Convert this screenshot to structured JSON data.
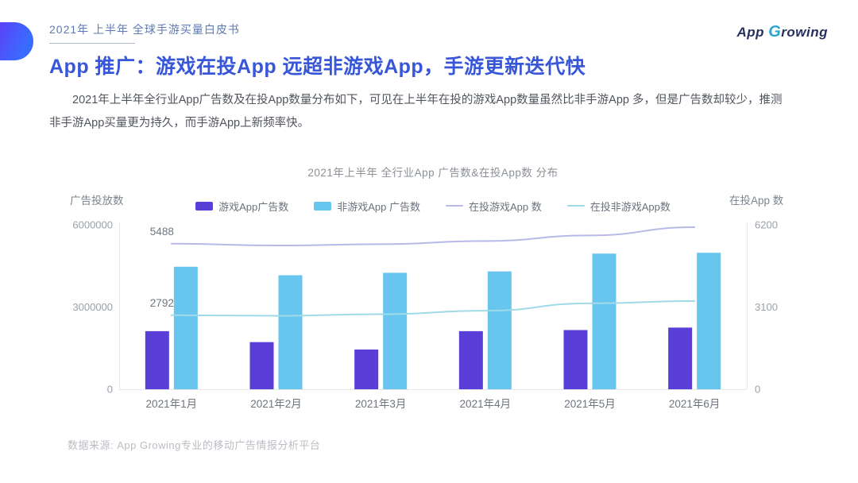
{
  "page": {
    "header_label": "2021年 上半年 全球手游买量白皮书",
    "logo": {
      "app": "App ",
      "g": "G",
      "rest": "rowing"
    },
    "title": "App 推广：游戏在投App 远超非游戏App，手游更新迭代快",
    "body": "2021年上半年全行业App广告数及在投App数量分布如下，可见在上半年在投的游戏App数量虽然比非手游App 多，但是广告数却较少，推测非手游App买量更为持久，而手游App上新频率快。",
    "footer": "数据来源: App Growing专业的移动广告情报分析平台"
  },
  "chart_data": {
    "type": "bar+line combo",
    "title": "2021年上半年 全行业App 广告数&在投App数 分布",
    "categories": [
      "2021年1月",
      "2021年2月",
      "2021年3月",
      "2021年4月",
      "2021年5月",
      "2021年6月"
    ],
    "left_axis": {
      "label": "广告投放数",
      "max": 6000000,
      "ticks": [
        "6000000",
        "3000000",
        "0"
      ],
      "ylim": [
        0,
        6000000
      ]
    },
    "right_axis": {
      "label": "在投App 数",
      "max": 6200,
      "ticks": [
        "6200",
        "3100",
        "0"
      ],
      "ylim": [
        0,
        6200
      ]
    },
    "bar_series": [
      {
        "key": "game-app-ads",
        "name": "游戏App广告数",
        "color": "#5a3ed8",
        "axis": "left",
        "values": [
          2120000,
          1720000,
          1450000,
          2120000,
          2160000,
          2250000
        ]
      },
      {
        "key": "nongame-app-ads",
        "name": "非游戏App 广告数",
        "color": "#68c5ee",
        "axis": "left",
        "values": [
          4470000,
          4160000,
          4250000,
          4300000,
          4950000,
          4980000
        ]
      }
    ],
    "line_series": [
      {
        "key": "active-game-apps",
        "name": "在投游戏App 数",
        "color": "#b7bae8",
        "axis": "right",
        "values": [
          5488,
          5420,
          5470,
          5590,
          5800,
          6110
        ]
      },
      {
        "key": "active-nongame-apps",
        "name": "在投非游戏App数",
        "color": "#a0d9e8",
        "axis": "right",
        "values": [
          2792,
          2770,
          2830,
          2960,
          3240,
          3330
        ]
      }
    ],
    "annotations": [
      {
        "text": "5488",
        "line": 0,
        "index": 0
      },
      {
        "text": "2792",
        "line": 1,
        "index": 0
      }
    ],
    "legend_position": "top-center",
    "grid": false
  }
}
